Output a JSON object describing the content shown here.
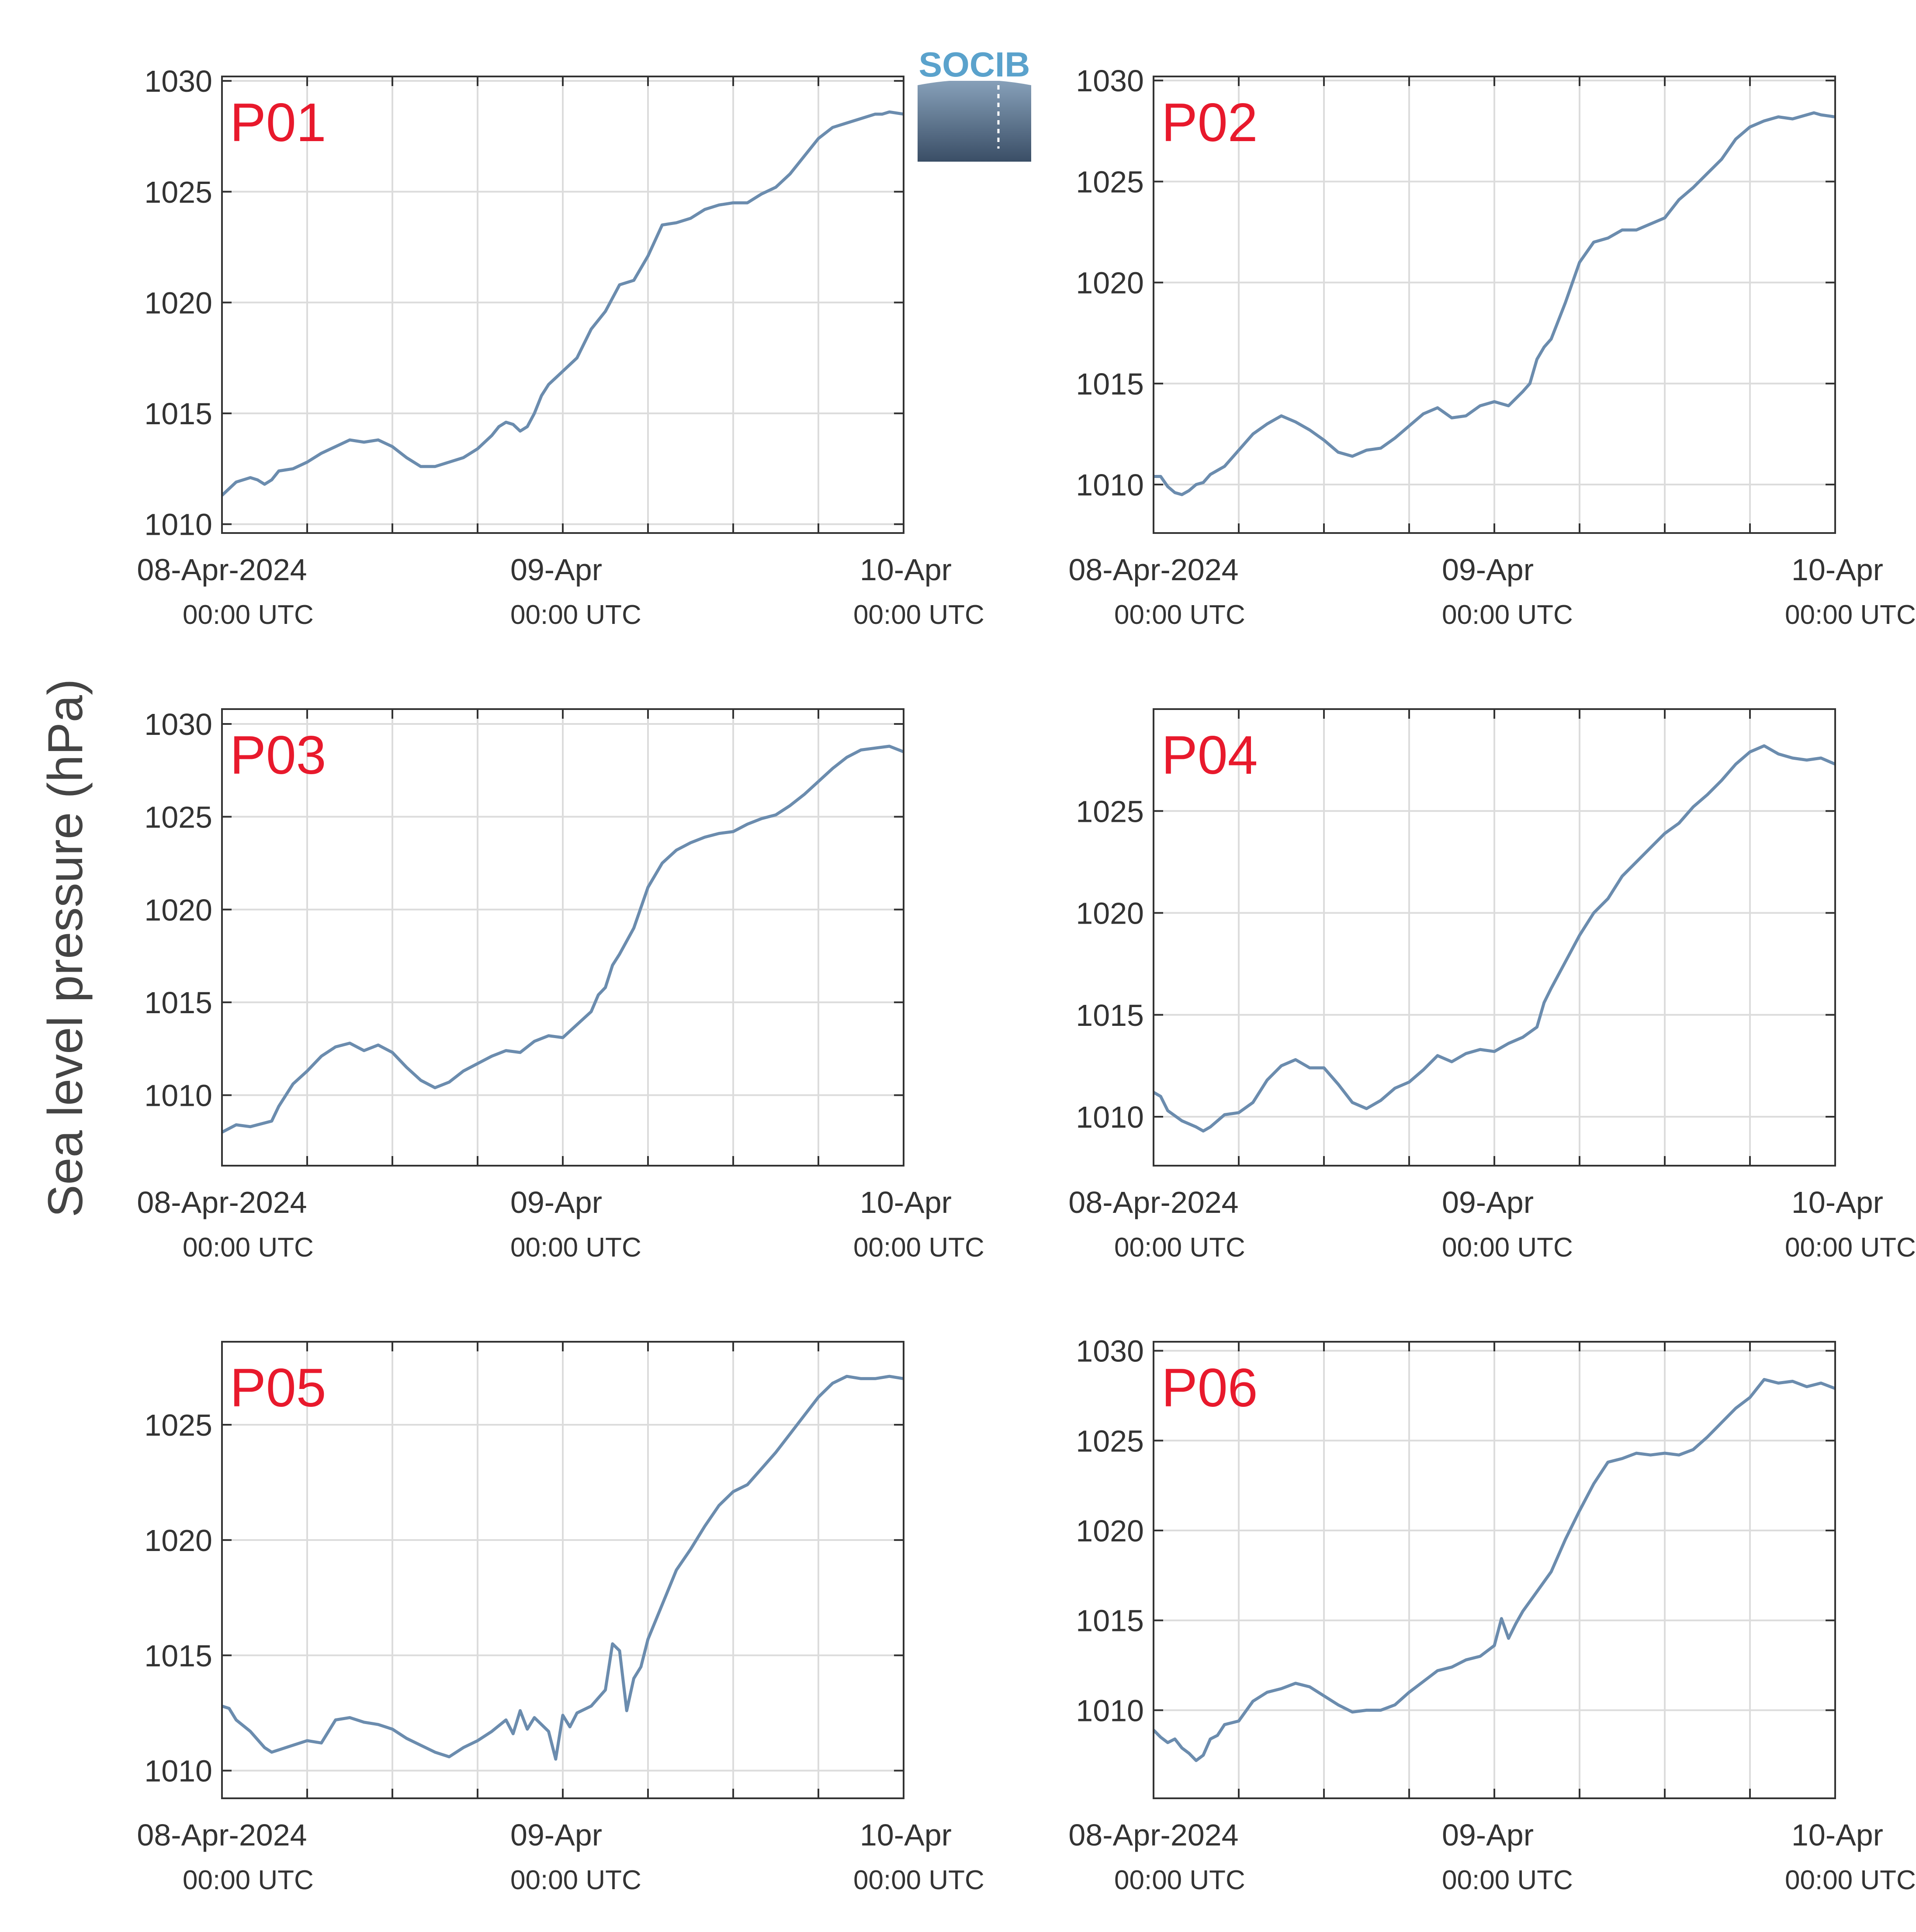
{
  "figure": {
    "ylabel": "Sea level pressure (hPa)",
    "logo_text": "SOCIB"
  },
  "colors": {
    "line": "#6b8cae",
    "title": "#e8192c",
    "grid": "#dcdcdc",
    "axis": "#333333",
    "logo_text": "#5aa2cc",
    "logo_top": "#8fa9c2",
    "logo_bottom": "#3a4e66"
  },
  "chart_data": [
    {
      "type": "line",
      "title": "P01",
      "x_tick_labels": [
        {
          "x": 0,
          "date": "08-Apr-2024",
          "time": "00:00 UTC"
        },
        {
          "x": 24,
          "date": "09-Apr",
          "time": "00:00 UTC"
        },
        {
          "x": 48,
          "date": "10-Apr",
          "time": "00:00 UTC"
        }
      ],
      "xlim": [
        0,
        48
      ],
      "minor_x_ticks": [
        6,
        12,
        18,
        30,
        36,
        42
      ],
      "ylim": [
        1009.6,
        1030.2
      ],
      "yticks": [
        1010,
        1015,
        1020,
        1025,
        1030
      ],
      "series": [
        {
          "x": [
            0,
            1,
            2,
            2.5,
            3,
            3.5,
            4,
            5,
            6,
            7,
            8,
            9,
            10,
            11,
            12,
            13,
            14,
            15,
            16,
            17,
            18,
            19,
            19.5,
            20,
            20.5,
            21,
            21.5,
            22,
            22.5,
            23,
            24,
            25,
            26,
            27,
            28,
            29,
            30,
            31,
            32,
            33,
            34,
            35,
            36,
            37,
            38,
            39,
            40,
            41,
            42,
            43,
            44,
            45,
            46,
            46.5,
            47,
            48
          ],
          "y": [
            1011.3,
            1011.9,
            1012.1,
            1012.0,
            1011.8,
            1012.0,
            1012.4,
            1012.5,
            1012.8,
            1013.2,
            1013.5,
            1013.8,
            1013.7,
            1013.8,
            1013.5,
            1013.0,
            1012.6,
            1012.6,
            1012.8,
            1013.0,
            1013.4,
            1014.0,
            1014.4,
            1014.6,
            1014.5,
            1014.2,
            1014.4,
            1015.0,
            1015.8,
            1016.3,
            1016.9,
            1017.5,
            1018.8,
            1019.6,
            1020.8,
            1021.0,
            1022.1,
            1023.5,
            1023.6,
            1023.8,
            1024.2,
            1024.4,
            1024.5,
            1024.5,
            1024.9,
            1025.2,
            1025.8,
            1026.6,
            1027.4,
            1027.9,
            1028.1,
            1028.3,
            1028.5,
            1028.5,
            1028.6,
            1028.5
          ]
        }
      ]
    },
    {
      "type": "line",
      "title": "P02",
      "x_tick_labels": [
        {
          "x": 0,
          "date": "08-Apr-2024",
          "time": "00:00 UTC"
        },
        {
          "x": 24,
          "date": "09-Apr",
          "time": "00:00 UTC"
        },
        {
          "x": 48,
          "date": "10-Apr",
          "time": "00:00 UTC"
        }
      ],
      "xlim": [
        0,
        48
      ],
      "minor_x_ticks": [
        6,
        12,
        18,
        30,
        36,
        42
      ],
      "ylim": [
        1007.6,
        1030.2
      ],
      "yticks": [
        1010,
        1015,
        1020,
        1025,
        1030
      ],
      "series": [
        {
          "x": [
            0,
            0.5,
            1,
            1.5,
            2,
            2.5,
            3,
            3.5,
            4,
            5,
            6,
            7,
            8,
            9,
            10,
            11,
            12,
            13,
            14,
            15,
            16,
            17,
            18,
            19,
            20,
            21,
            22,
            23,
            24,
            25,
            26,
            26.5,
            27,
            27.5,
            28,
            29,
            30,
            31,
            32,
            33,
            34,
            35,
            36,
            37,
            38,
            39,
            40,
            41,
            42,
            43,
            44,
            45,
            46,
            46.5,
            47,
            48
          ],
          "y": [
            1010.4,
            1010.4,
            1009.9,
            1009.6,
            1009.5,
            1009.7,
            1010.0,
            1010.1,
            1010.5,
            1010.9,
            1011.7,
            1012.5,
            1013.0,
            1013.4,
            1013.1,
            1012.7,
            1012.2,
            1011.6,
            1011.4,
            1011.7,
            1011.8,
            1012.3,
            1012.9,
            1013.5,
            1013.8,
            1013.3,
            1013.4,
            1013.9,
            1014.1,
            1013.9,
            1014.6,
            1015.0,
            1016.2,
            1016.8,
            1017.2,
            1019.0,
            1021.0,
            1022.0,
            1022.2,
            1022.6,
            1022.6,
            1022.9,
            1023.2,
            1024.1,
            1024.7,
            1025.4,
            1026.1,
            1027.1,
            1027.7,
            1028.0,
            1028.2,
            1028.1,
            1028.3,
            1028.4,
            1028.3,
            1028.2
          ]
        }
      ]
    },
    {
      "type": "line",
      "title": "P03",
      "x_tick_labels": [
        {
          "x": 0,
          "date": "08-Apr-2024",
          "time": "00:00 UTC"
        },
        {
          "x": 24,
          "date": "09-Apr",
          "time": "00:00 UTC"
        },
        {
          "x": 48,
          "date": "10-Apr",
          "time": "00:00 UTC"
        }
      ],
      "xlim": [
        0,
        48
      ],
      "minor_x_ticks": [
        6,
        12,
        18,
        30,
        36,
        42
      ],
      "ylim": [
        1006.2,
        1030.8
      ],
      "yticks": [
        1010,
        1015,
        1020,
        1025,
        1030
      ],
      "series": [
        {
          "x": [
            0,
            1,
            2,
            3,
            3.5,
            4,
            5,
            6,
            7,
            8,
            9,
            10,
            11,
            12,
            13,
            14,
            15,
            16,
            17,
            18,
            19,
            20,
            21,
            22,
            23,
            24,
            25,
            26,
            26.5,
            27,
            27.5,
            28,
            29,
            30,
            31,
            32,
            33,
            34,
            35,
            36,
            37,
            38,
            39,
            40,
            41,
            42,
            43,
            44,
            45,
            46,
            47,
            48
          ],
          "y": [
            1008.0,
            1008.4,
            1008.3,
            1008.5,
            1008.6,
            1009.4,
            1010.6,
            1011.3,
            1012.1,
            1012.6,
            1012.8,
            1012.4,
            1012.7,
            1012.3,
            1011.5,
            1010.8,
            1010.4,
            1010.7,
            1011.3,
            1011.7,
            1012.1,
            1012.4,
            1012.3,
            1012.9,
            1013.2,
            1013.1,
            1013.8,
            1014.5,
            1015.4,
            1015.8,
            1017.0,
            1017.6,
            1019.0,
            1021.2,
            1022.5,
            1023.2,
            1023.6,
            1023.9,
            1024.1,
            1024.2,
            1024.6,
            1024.9,
            1025.1,
            1025.6,
            1026.2,
            1026.9,
            1027.6,
            1028.2,
            1028.6,
            1028.7,
            1028.8,
            1028.5
          ]
        }
      ]
    },
    {
      "type": "line",
      "title": "P04",
      "x_tick_labels": [
        {
          "x": 0,
          "date": "08-Apr-2024",
          "time": "00:00 UTC"
        },
        {
          "x": 24,
          "date": "09-Apr",
          "time": "00:00 UTC"
        },
        {
          "x": 48,
          "date": "10-Apr",
          "time": "00:00 UTC"
        }
      ],
      "xlim": [
        0,
        48
      ],
      "minor_x_ticks": [
        6,
        12,
        18,
        30,
        36,
        42
      ],
      "ylim": [
        1007.6,
        1030.0
      ],
      "yticks": [
        1010,
        1015,
        1020,
        1025
      ],
      "series": [
        {
          "x": [
            0,
            0.5,
            1,
            2,
            3,
            3.5,
            4,
            5,
            6,
            7,
            8,
            9,
            10,
            11,
            12,
            13,
            14,
            15,
            16,
            17,
            18,
            19,
            20,
            21,
            22,
            23,
            24,
            25,
            26,
            27,
            27.5,
            28,
            29,
            30,
            31,
            32,
            33,
            34,
            35,
            36,
            37,
            38,
            39,
            40,
            41,
            42,
            43,
            44,
            45,
            46,
            47,
            48
          ],
          "y": [
            1011.2,
            1011.0,
            1010.3,
            1009.8,
            1009.5,
            1009.3,
            1009.5,
            1010.1,
            1010.2,
            1010.7,
            1011.8,
            1012.5,
            1012.8,
            1012.4,
            1012.4,
            1011.6,
            1010.7,
            1010.4,
            1010.8,
            1011.4,
            1011.7,
            1012.3,
            1013.0,
            1012.7,
            1013.1,
            1013.3,
            1013.2,
            1013.6,
            1013.9,
            1014.4,
            1015.6,
            1016.3,
            1017.6,
            1018.9,
            1020.0,
            1020.7,
            1021.8,
            1022.5,
            1023.2,
            1023.9,
            1024.4,
            1025.2,
            1025.8,
            1026.5,
            1027.3,
            1027.9,
            1028.2,
            1027.8,
            1027.6,
            1027.5,
            1027.6,
            1027.3
          ]
        }
      ]
    },
    {
      "type": "line",
      "title": "P05",
      "x_tick_labels": [
        {
          "x": 0,
          "date": "08-Apr-2024",
          "time": "00:00 UTC"
        },
        {
          "x": 24,
          "date": "09-Apr",
          "time": "00:00 UTC"
        },
        {
          "x": 48,
          "date": "10-Apr",
          "time": "00:00 UTC"
        }
      ],
      "xlim": [
        0,
        48
      ],
      "minor_x_ticks": [
        6,
        12,
        18,
        30,
        36,
        42
      ],
      "ylim": [
        1008.8,
        1028.6
      ],
      "yticks": [
        1010,
        1015,
        1020,
        1025
      ],
      "series": [
        {
          "x": [
            0,
            0.5,
            1,
            2,
            3,
            3.5,
            4,
            5,
            6,
            7,
            8,
            9,
            10,
            11,
            12,
            13,
            14,
            15,
            16,
            17,
            18,
            19,
            20,
            20.5,
            21,
            21.5,
            22,
            23,
            23.5,
            24,
            24.5,
            25,
            26,
            27,
            27.5,
            28,
            28.5,
            29,
            29.5,
            30,
            31,
            32,
            33,
            34,
            35,
            36,
            37,
            38,
            39,
            40,
            41,
            42,
            43,
            44,
            45,
            46,
            47,
            48
          ],
          "y": [
            1012.8,
            1012.7,
            1012.2,
            1011.7,
            1011.0,
            1010.8,
            1010.9,
            1011.1,
            1011.3,
            1011.2,
            1012.2,
            1012.3,
            1012.1,
            1012.0,
            1011.8,
            1011.4,
            1011.1,
            1010.8,
            1010.6,
            1011.0,
            1011.3,
            1011.7,
            1012.2,
            1011.6,
            1012.6,
            1011.8,
            1012.3,
            1011.7,
            1010.5,
            1012.4,
            1011.9,
            1012.5,
            1012.8,
            1013.5,
            1015.5,
            1015.2,
            1012.6,
            1014.0,
            1014.5,
            1015.7,
            1017.2,
            1018.7,
            1019.6,
            1020.6,
            1021.5,
            1022.1,
            1022.4,
            1023.1,
            1023.8,
            1024.6,
            1025.4,
            1026.2,
            1026.8,
            1027.1,
            1027.0,
            1027.0,
            1027.1,
            1027.0
          ]
        }
      ]
    },
    {
      "type": "line",
      "title": "P06",
      "x_tick_labels": [
        {
          "x": 0,
          "date": "08-Apr-2024",
          "time": "00:00 UTC"
        },
        {
          "x": 24,
          "date": "09-Apr",
          "time": "00:00 UTC"
        },
        {
          "x": 48,
          "date": "10-Apr",
          "time": "00:00 UTC"
        }
      ],
      "xlim": [
        0,
        48
      ],
      "minor_x_ticks": [
        6,
        12,
        18,
        30,
        36,
        42
      ],
      "ylim": [
        1005.1,
        1030.5
      ],
      "yticks": [
        1010,
        1015,
        1020,
        1025,
        1030
      ],
      "series": [
        {
          "x": [
            0,
            0.5,
            1,
            1.5,
            2,
            2.5,
            3,
            3.5,
            4,
            4.5,
            5,
            6,
            7,
            8,
            9,
            10,
            11,
            12,
            13,
            14,
            15,
            16,
            17,
            18,
            19,
            20,
            21,
            22,
            23,
            24,
            24.5,
            25,
            25.5,
            26,
            27,
            28,
            29,
            30,
            31,
            32,
            33,
            34,
            35,
            36,
            37,
            38,
            39,
            40,
            41,
            42,
            43,
            44,
            45,
            46,
            47,
            48
          ],
          "y": [
            1008.9,
            1008.5,
            1008.2,
            1008.4,
            1007.9,
            1007.6,
            1007.2,
            1007.5,
            1008.4,
            1008.6,
            1009.2,
            1009.4,
            1010.5,
            1011.0,
            1011.2,
            1011.5,
            1011.3,
            1010.8,
            1010.3,
            1009.9,
            1010.0,
            1010.0,
            1010.3,
            1011.0,
            1011.6,
            1012.2,
            1012.4,
            1012.8,
            1013.0,
            1013.6,
            1015.1,
            1014.0,
            1014.8,
            1015.5,
            1016.6,
            1017.7,
            1019.5,
            1021.1,
            1022.6,
            1023.8,
            1024.0,
            1024.3,
            1024.2,
            1024.3,
            1024.2,
            1024.5,
            1025.2,
            1026.0,
            1026.8,
            1027.4,
            1028.4,
            1028.2,
            1028.3,
            1028.0,
            1028.2,
            1027.9
          ]
        }
      ]
    }
  ]
}
